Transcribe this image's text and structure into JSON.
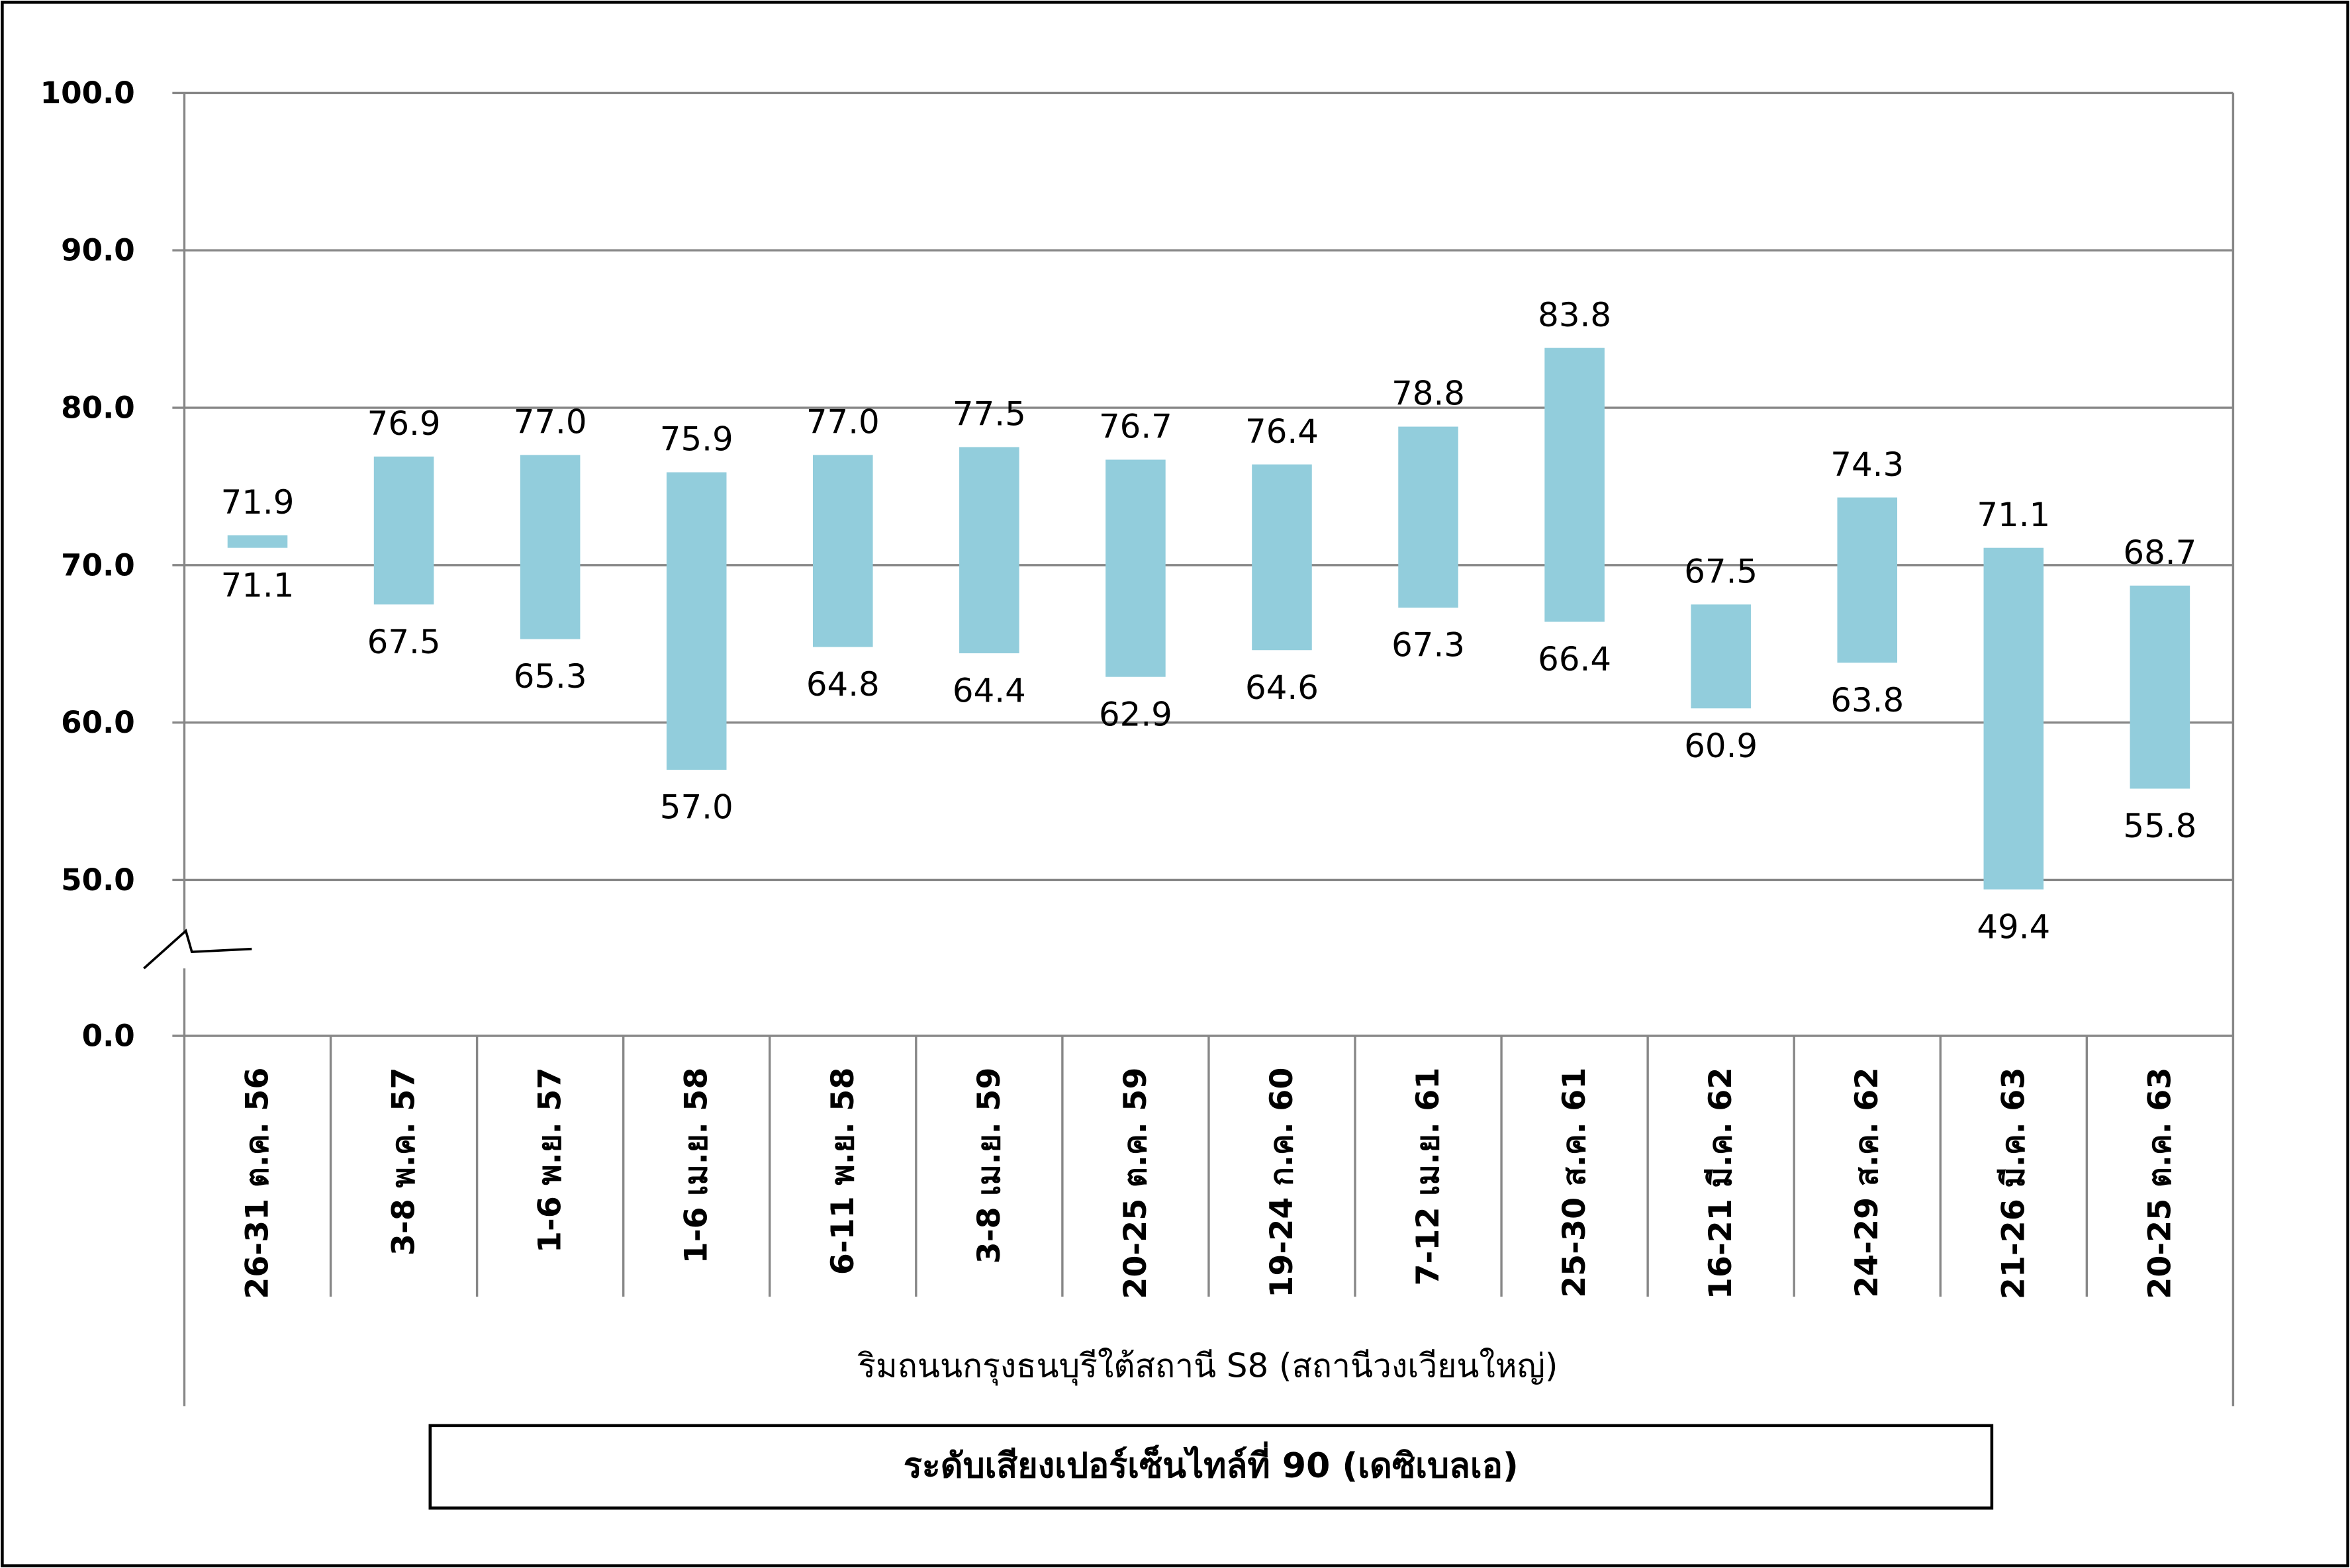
{
  "chart_data": {
    "type": "bar",
    "categories": [
      "26-31 ต.ค. 56",
      "3-8 พ.ค. 57",
      "1-6 พ.ย. 57",
      "1-6 เม.ย. 58",
      "6-11 พ.ย. 58",
      "3-8 เม.ย. 59",
      "20-25 ต.ค. 59",
      "19-24 ก.ค. 60",
      "7-12 เม.ย. 61",
      "25-30 ส.ค. 61",
      "16-21 มี.ค. 62",
      "24-29 ส.ค. 62",
      "21-26 มี.ค. 63",
      "20-25 ต.ค. 63"
    ],
    "category_group": "ริมถนนกรุงธนบุรีใต้สถานี S8 (สถานีวงเวียนใหญ่)",
    "series": [
      {
        "name": "ระดับเสียงเปอร์เซ็นไทล์ที่ 90 (เดซิเบลเอ)",
        "low": [
          71.1,
          67.5,
          65.3,
          57.0,
          64.8,
          64.4,
          62.9,
          64.6,
          67.3,
          66.4,
          60.9,
          63.8,
          49.4,
          55.8
        ],
        "high": [
          71.9,
          76.9,
          77.0,
          75.9,
          77.0,
          77.5,
          76.7,
          76.4,
          78.8,
          83.8,
          67.5,
          74.3,
          71.1,
          68.7
        ],
        "color": "#92CDDC"
      }
    ],
    "ylim": [
      50,
      100
    ],
    "y_axis_break": [
      0,
      50
    ],
    "yticks": [
      100,
      90,
      80,
      70,
      60,
      50,
      0
    ],
    "ytick_labels": [
      "100.0",
      "90.0",
      "80.0",
      "70.0",
      "60.0",
      "50.0",
      "0.0"
    ],
    "grid": true,
    "legend": "bottom"
  }
}
